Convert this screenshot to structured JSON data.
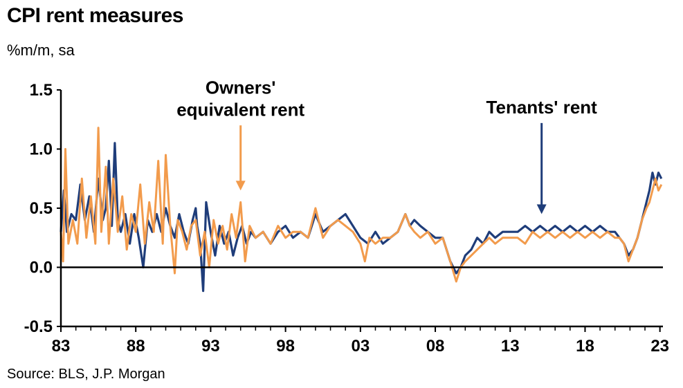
{
  "header": {
    "title": "CPI rent measures",
    "subtitle": "%m/m, sa"
  },
  "footer": {
    "source": "Source: BLS, J.P. Morgan"
  },
  "colors": {
    "tenants": "#1f3d7a",
    "oer": "#f29b4c",
    "axis": "#000000"
  },
  "chart_data": {
    "type": "line",
    "title": "CPI rent measures",
    "subtitle": "%m/m, sa",
    "xlabel": "",
    "ylabel": "",
    "xlim": [
      1983,
      2023.2
    ],
    "ylim": [
      -0.5,
      1.5
    ],
    "grid": false,
    "legend": "none",
    "x_ticks": [
      {
        "value": 1983,
        "label": "83"
      },
      {
        "value": 1988,
        "label": "88"
      },
      {
        "value": 1993,
        "label": "93"
      },
      {
        "value": 1998,
        "label": "98"
      },
      {
        "value": 2003,
        "label": "03"
      },
      {
        "value": 2008,
        "label": "08"
      },
      {
        "value": 2013,
        "label": "13"
      },
      {
        "value": 2018,
        "label": "18"
      },
      {
        "value": 2023,
        "label": "23"
      }
    ],
    "y_ticks": [
      {
        "value": 1.5,
        "label": "1.5"
      },
      {
        "value": 1.0,
        "label": "1.0"
      },
      {
        "value": 0.5,
        "label": "0.5"
      },
      {
        "value": 0.0,
        "label": "0.0"
      },
      {
        "value": -0.5,
        "label": "-0.5"
      }
    ],
    "annotations": [
      {
        "lines": [
          "Owners'",
          "equivalent rent"
        ],
        "arrow_x": 1995.0,
        "arrow_y_from": 1.2,
        "arrow_y_to": 0.65,
        "series": "oer"
      },
      {
        "lines": [
          "Tenants' rent"
        ],
        "arrow_x": 2015.1,
        "arrow_y_from": 1.22,
        "arrow_y_to": 0.45,
        "series": "tenants"
      }
    ],
    "series": [
      {
        "key": "tenants",
        "x": [
          1983.0,
          1983.2,
          1983.4,
          1983.7,
          1984.0,
          1984.3,
          1984.6,
          1984.9,
          1985.2,
          1985.5,
          1985.8,
          1986.0,
          1986.2,
          1986.4,
          1986.6,
          1986.8,
          1987.0,
          1987.3,
          1987.6,
          1987.9,
          1988.2,
          1988.5,
          1988.8,
          1989.1,
          1989.4,
          1989.7,
          1990.0,
          1990.3,
          1990.6,
          1990.9,
          1991.2,
          1991.5,
          1991.8,
          1992.0,
          1992.1,
          1992.3,
          1992.5,
          1992.7,
          1993.0,
          1993.3,
          1993.6,
          1993.9,
          1994.2,
          1994.5,
          1994.8,
          1995.1,
          1995.4,
          1995.7,
          1996.0,
          1996.5,
          1997.0,
          1997.5,
          1998.0,
          1998.5,
          1999.0,
          1999.5,
          2000.0,
          2000.5,
          2001.0,
          2001.5,
          2002.0,
          2002.5,
          2003.0,
          2003.5,
          2004.0,
          2004.5,
          2005.0,
          2005.5,
          2006.0,
          2006.3,
          2006.6,
          2007.0,
          2007.5,
          2008.0,
          2008.5,
          2009.0,
          2009.4,
          2009.7,
          2010.0,
          2010.4,
          2010.8,
          2011.2,
          2011.6,
          2012.0,
          2012.5,
          2013.0,
          2013.5,
          2014.0,
          2014.5,
          2015.0,
          2015.5,
          2016.0,
          2016.5,
          2017.0,
          2017.5,
          2018.0,
          2018.5,
          2019.0,
          2019.5,
          2020.0,
          2020.3,
          2020.6,
          2020.9,
          2021.2,
          2021.5,
          2021.8,
          2022.1,
          2022.3,
          2022.5,
          2022.7,
          2022.9,
          2023.1
        ],
        "values": [
          0.3,
          0.65,
          0.3,
          0.45,
          0.4,
          0.7,
          0.4,
          0.6,
          0.3,
          0.75,
          0.4,
          0.5,
          0.9,
          0.35,
          1.05,
          0.4,
          0.3,
          0.45,
          0.2,
          0.45,
          0.25,
          0.0,
          0.4,
          0.3,
          0.45,
          0.3,
          0.5,
          0.35,
          0.25,
          0.45,
          0.3,
          0.2,
          0.4,
          0.5,
          0.35,
          0.2,
          -0.2,
          0.55,
          0.3,
          0.1,
          0.35,
          0.2,
          0.3,
          0.1,
          0.25,
          0.35,
          0.2,
          0.3,
          0.25,
          0.3,
          0.2,
          0.3,
          0.35,
          0.25,
          0.3,
          0.25,
          0.45,
          0.3,
          0.35,
          0.4,
          0.45,
          0.35,
          0.25,
          0.2,
          0.3,
          0.2,
          0.25,
          0.3,
          0.45,
          0.35,
          0.4,
          0.35,
          0.3,
          0.25,
          0.25,
          0.05,
          -0.05,
          0.0,
          0.1,
          0.15,
          0.25,
          0.2,
          0.3,
          0.25,
          0.3,
          0.3,
          0.3,
          0.35,
          0.3,
          0.35,
          0.3,
          0.35,
          0.3,
          0.35,
          0.3,
          0.35,
          0.3,
          0.35,
          0.3,
          0.3,
          0.25,
          0.2,
          0.1,
          0.15,
          0.25,
          0.4,
          0.55,
          0.65,
          0.8,
          0.7,
          0.8,
          0.75
        ]
      },
      {
        "key": "oer",
        "x": [
          1983.0,
          1983.15,
          1983.3,
          1983.5,
          1983.8,
          1984.1,
          1984.4,
          1984.7,
          1985.0,
          1985.3,
          1985.5,
          1985.7,
          1986.0,
          1986.2,
          1986.5,
          1986.8,
          1987.1,
          1987.4,
          1987.7,
          1988.0,
          1988.3,
          1988.6,
          1988.9,
          1989.2,
          1989.5,
          1989.8,
          1990.0,
          1990.3,
          1990.6,
          1990.8,
          1991.1,
          1991.4,
          1991.7,
          1992.0,
          1992.3,
          1992.6,
          1992.9,
          1993.2,
          1993.5,
          1993.8,
          1994.1,
          1994.4,
          1994.7,
          1995.0,
          1995.3,
          1995.6,
          1996.0,
          1996.5,
          1997.0,
          1997.5,
          1998.0,
          1998.5,
          1999.0,
          1999.5,
          2000.0,
          2000.5,
          2001.0,
          2001.5,
          2002.0,
          2002.5,
          2003.0,
          2003.3,
          2003.6,
          2004.0,
          2004.5,
          2005.0,
          2005.5,
          2006.0,
          2006.3,
          2006.6,
          2007.0,
          2007.5,
          2008.0,
          2008.5,
          2009.0,
          2009.4,
          2009.7,
          2010.0,
          2010.4,
          2010.8,
          2011.2,
          2011.6,
          2012.0,
          2012.5,
          2013.0,
          2013.5,
          2014.0,
          2014.5,
          2015.0,
          2015.5,
          2016.0,
          2016.5,
          2017.0,
          2017.5,
          2018.0,
          2018.5,
          2019.0,
          2019.5,
          2020.0,
          2020.3,
          2020.6,
          2020.9,
          2021.2,
          2021.5,
          2021.8,
          2022.1,
          2022.3,
          2022.5,
          2022.7,
          2022.9,
          2023.1
        ],
        "values": [
          0.3,
          0.05,
          1.0,
          0.2,
          0.4,
          0.2,
          0.75,
          0.25,
          0.6,
          0.2,
          1.18,
          0.3,
          0.85,
          0.2,
          0.75,
          0.3,
          0.6,
          0.15,
          0.45,
          0.3,
          0.7,
          0.2,
          0.55,
          0.3,
          0.9,
          0.2,
          0.95,
          0.35,
          -0.05,
          0.4,
          0.3,
          0.15,
          0.35,
          0.4,
          0.1,
          0.3,
          0.0,
          0.4,
          0.2,
          0.35,
          0.15,
          0.45,
          0.25,
          0.55,
          0.05,
          0.35,
          0.25,
          0.3,
          0.2,
          0.35,
          0.25,
          0.3,
          0.3,
          0.25,
          0.5,
          0.25,
          0.35,
          0.4,
          0.35,
          0.3,
          0.2,
          0.05,
          0.25,
          0.2,
          0.25,
          0.25,
          0.3,
          0.45,
          0.35,
          0.3,
          0.25,
          0.3,
          0.2,
          0.25,
          0.05,
          -0.12,
          0.0,
          0.05,
          0.1,
          0.15,
          0.2,
          0.25,
          0.2,
          0.25,
          0.25,
          0.25,
          0.2,
          0.3,
          0.25,
          0.3,
          0.25,
          0.3,
          0.25,
          0.3,
          0.25,
          0.3,
          0.25,
          0.3,
          0.25,
          0.25,
          0.2,
          0.05,
          0.15,
          0.25,
          0.4,
          0.5,
          0.55,
          0.65,
          0.75,
          0.65,
          0.7
        ]
      }
    ]
  }
}
